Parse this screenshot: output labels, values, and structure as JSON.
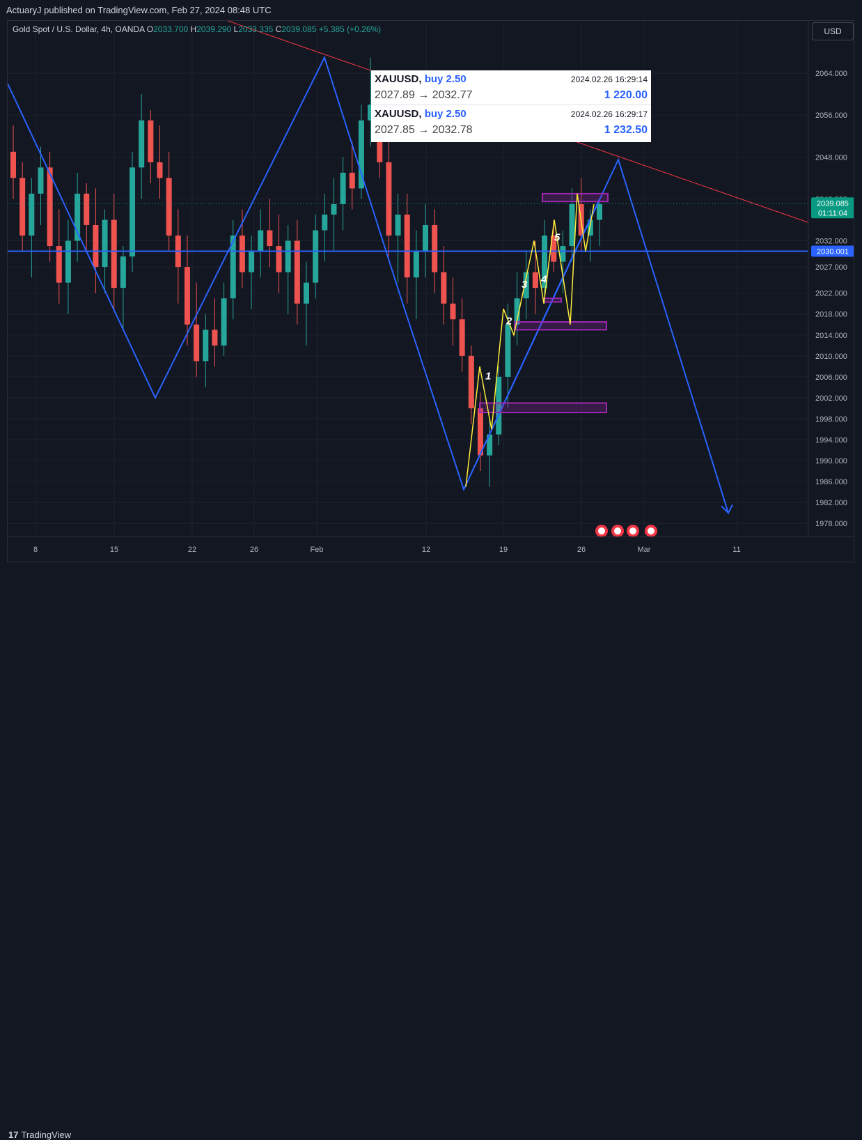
{
  "header": {
    "publisher": "ActuaryJ published on TradingView.com, Feb 27, 2024 08:48 UTC"
  },
  "legend": {
    "symbol": "Gold Spot / U.S. Dollar, 4h, OANDA",
    "open_label": "O",
    "open": "2033.700",
    "high_label": "H",
    "high": "2039.290",
    "low_label": "L",
    "low": "2033.335",
    "close_label": "C",
    "close": "2039.085",
    "change": "+5.385 (+0.26%)"
  },
  "currency_button": "USD",
  "footer": {
    "brand": "TradingView",
    "brand_mark": "17"
  },
  "trades": [
    {
      "symbol": "XAUUSD,",
      "side": "buy 2.50",
      "time": "2024.02.26 16:29:14",
      "prices": "2027.89 → 2032.77",
      "profit": "1 220.00"
    },
    {
      "symbol": "XAUUSD,",
      "side": "buy 2.50",
      "time": "2024.02.26 16:29:17",
      "prices": "2027.85 → 2032.78",
      "profit": "1 232.50"
    }
  ],
  "chart_data": {
    "type": "candlestick",
    "timeframe": "4h",
    "ylim": [
      1975.5,
      2074.0
    ],
    "y_ticks": [
      "2064.000",
      "2056.000",
      "2048.000",
      "2040.000",
      "2032.000",
      "2027.000",
      "2022.000",
      "2018.000",
      "2014.000",
      "2010.000",
      "2006.000",
      "2002.000",
      "1998.000",
      "1994.000",
      "1990.000",
      "1986.000",
      "1982.000",
      "1978.000"
    ],
    "x_ticks": [
      "8",
      "15",
      "22",
      "26",
      "Feb",
      "12",
      "19",
      "26",
      "Mar",
      "11"
    ],
    "current_price": {
      "value": "2039.085",
      "countdown": "01:11:04",
      "color": "#089981"
    },
    "horizontal_level": {
      "value": "2030.001",
      "color": "#2962ff"
    },
    "wave_labels": [
      "1",
      "2",
      "3",
      "4",
      "5"
    ],
    "colors": {
      "up": "#26a69a",
      "down": "#ef5350",
      "projection": "#2962ff",
      "trendline": "#f23645",
      "zone": "#9c27b0",
      "waves": "#ffeb3b"
    },
    "pivots": [
      2062,
      2002,
      2067,
      2021,
      1984.5,
      2047.5,
      1980
    ],
    "ohlc_approx": [
      [
        2049,
        2054,
        2040,
        2044
      ],
      [
        2044,
        2047,
        2030,
        2033
      ],
      [
        2033,
        2044,
        2025,
        2041
      ],
      [
        2041,
        2050,
        2035,
        2046
      ],
      [
        2046,
        2049,
        2028,
        2031
      ],
      [
        2031,
        2038,
        2020,
        2024
      ],
      [
        2024,
        2036,
        2018,
        2032
      ],
      [
        2032,
        2045,
        2028,
        2041
      ],
      [
        2041,
        2043,
        2030,
        2035
      ],
      [
        2035,
        2042,
        2022,
        2027
      ],
      [
        2027,
        2038,
        2022,
        2036
      ],
      [
        2036,
        2041,
        2019,
        2023
      ],
      [
        2023,
        2031,
        2015,
        2029
      ],
      [
        2029,
        2049,
        2026,
        2046
      ],
      [
        2046,
        2060,
        2040,
        2055
      ],
      [
        2055,
        2057,
        2043,
        2047
      ],
      [
        2047,
        2054,
        2040,
        2044
      ],
      [
        2044,
        2049,
        2030,
        2033
      ],
      [
        2033,
        2038,
        2020,
        2027
      ],
      [
        2027,
        2033,
        2012,
        2016
      ],
      [
        2016,
        2024,
        2006,
        2009
      ],
      [
        2009,
        2018,
        2004,
        2015
      ],
      [
        2015,
        2021,
        2008,
        2012
      ],
      [
        2012,
        2024,
        2010,
        2021
      ],
      [
        2021,
        2036,
        2017,
        2033
      ],
      [
        2033,
        2038,
        2023,
        2026
      ],
      [
        2026,
        2033,
        2019,
        2030
      ],
      [
        2030,
        2038,
        2025,
        2034
      ],
      [
        2034,
        2040,
        2027,
        2031
      ],
      [
        2031,
        2037,
        2022,
        2026
      ],
      [
        2026,
        2035,
        2018,
        2032
      ],
      [
        2032,
        2036,
        2016,
        2020
      ],
      [
        2020,
        2028,
        2012,
        2024
      ],
      [
        2024,
        2037,
        2021,
        2034
      ],
      [
        2034,
        2041,
        2028,
        2037
      ],
      [
        2037,
        2044,
        2030,
        2039
      ],
      [
        2039,
        2048,
        2034,
        2045
      ],
      [
        2045,
        2051,
        2038,
        2042
      ],
      [
        2042,
        2058,
        2040,
        2055
      ],
      [
        2055,
        2067,
        2050,
        2058
      ],
      [
        2058,
        2061,
        2044,
        2047
      ],
      [
        2047,
        2055,
        2029,
        2033
      ],
      [
        2033,
        2041,
        2024,
        2037
      ],
      [
        2037,
        2041,
        2020,
        2025
      ],
      [
        2025,
        2034,
        2017,
        2030
      ],
      [
        2030,
        2039,
        2025,
        2035
      ],
      [
        2035,
        2038,
        2022,
        2026
      ],
      [
        2026,
        2031,
        2016,
        2020
      ],
      [
        2020,
        2025,
        2012,
        2017
      ],
      [
        2017,
        2021,
        2007,
        2010
      ],
      [
        2010,
        2012,
        1997,
        2000
      ],
      [
        2000,
        2003,
        1988,
        1991
      ],
      [
        1991,
        1998,
        1985,
        1995
      ],
      [
        1995,
        2008,
        1993,
        2006
      ],
      [
        2006,
        2020,
        2000,
        2016
      ],
      [
        2016,
        2026,
        2012,
        2021
      ],
      [
        2021,
        2030,
        2017,
        2026
      ],
      [
        2026,
        2032,
        2018,
        2023
      ],
      [
        2023,
        2036,
        2020,
        2033
      ],
      [
        2033,
        2036,
        2026,
        2028
      ],
      [
        2028,
        2034,
        2022,
        2031
      ],
      [
        2031,
        2042,
        2028,
        2039
      ],
      [
        2039,
        2044,
        2030,
        2033
      ],
      [
        2033,
        2038,
        2028,
        2036
      ],
      [
        2036,
        2040,
        2031,
        2039
      ]
    ]
  }
}
